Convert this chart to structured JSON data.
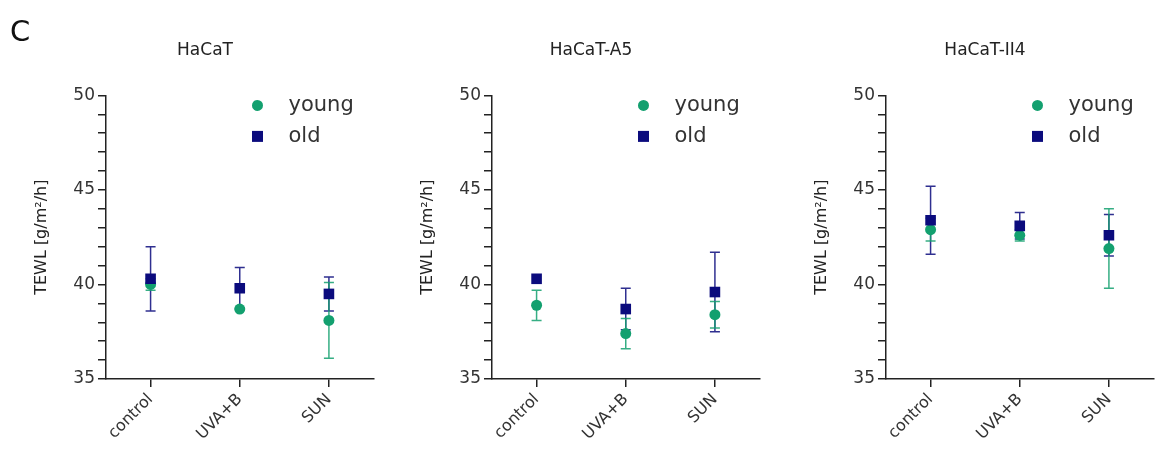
{
  "chart_data": [
    {
      "type": "scatter",
      "title": "HaCaT",
      "annotations": [
        "C"
      ],
      "categories": [
        "control",
        "UVA+B",
        "SUN"
      ],
      "ylabel": "TEWL [g/m²/h]",
      "ylim": [
        35,
        50
      ],
      "yticks": [
        35,
        {
          "value": 36,
          "label": null
        },
        {
          "value": 37,
          "label": null
        },
        {
          "value": 38,
          "label": null
        },
        {
          "value": 39,
          "label": null
        },
        40,
        {
          "value": 41,
          "label": null
        },
        {
          "value": 42,
          "label": null
        },
        {
          "value": 43,
          "label": null
        },
        {
          "value": 44,
          "label": null
        },
        45,
        {
          "value": 46,
          "label": null
        },
        {
          "value": 47,
          "label": null
        },
        {
          "value": 48,
          "label": null
        },
        {
          "value": 49,
          "label": null
        },
        50
      ],
      "legend": "top right",
      "grid": false,
      "series": [
        {
          "name": "young",
          "color": "#13a06f",
          "marker": "circle",
          "values": [
            40.0,
            38.7,
            38.1
          ],
          "errors": [
            0.3,
            null,
            2.0
          ]
        },
        {
          "name": "old",
          "color": "#0b0b7d",
          "marker": "square",
          "values": [
            40.3,
            39.8,
            39.5
          ],
          "errors": [
            1.7,
            1.1,
            0.9
          ]
        }
      ]
    },
    {
      "type": "scatter",
      "title": "HaCaT-A5",
      "categories": [
        "control",
        "UVA+B",
        "SUN"
      ],
      "ylabel": "TEWL [g/m²/h]",
      "ylim": [
        35,
        50
      ],
      "yticks": [
        35,
        {
          "value": 36,
          "label": null
        },
        {
          "value": 37,
          "label": null
        },
        {
          "value": 38,
          "label": null
        },
        {
          "value": 39,
          "label": null
        },
        40,
        {
          "value": 41,
          "label": null
        },
        {
          "value": 42,
          "label": null
        },
        {
          "value": 43,
          "label": null
        },
        {
          "value": 44,
          "label": null
        },
        45,
        {
          "value": 46,
          "label": null
        },
        {
          "value": 47,
          "label": null
        },
        {
          "value": 48,
          "label": null
        },
        {
          "value": 49,
          "label": null
        },
        50
      ],
      "legend": "top right",
      "grid": false,
      "series": [
        {
          "name": "young",
          "color": "#13a06f",
          "marker": "circle",
          "values": [
            38.9,
            37.4,
            38.4
          ],
          "errors": [
            0.8,
            0.8,
            0.7
          ]
        },
        {
          "name": "old",
          "color": "#0b0b7d",
          "marker": "square",
          "values": [
            40.3,
            38.7,
            39.6
          ],
          "errors": [
            null,
            1.1,
            2.1
          ]
        }
      ]
    },
    {
      "type": "scatter",
      "title": "HaCaT-II4",
      "categories": [
        "control",
        "UVA+B",
        "SUN"
      ],
      "ylabel": "TEWL [g/m²/h]",
      "ylim": [
        35,
        50
      ],
      "yticks": [
        35,
        {
          "value": 36,
          "label": null
        },
        {
          "value": 37,
          "label": null
        },
        {
          "value": 38,
          "label": null
        },
        {
          "value": 39,
          "label": null
        },
        40,
        {
          "value": 41,
          "label": null
        },
        {
          "value": 42,
          "label": null
        },
        {
          "value": 43,
          "label": null
        },
        {
          "value": 44,
          "label": null
        },
        45,
        {
          "value": 46,
          "label": null
        },
        {
          "value": 47,
          "label": null
        },
        {
          "value": 48,
          "label": null
        },
        {
          "value": 49,
          "label": null
        },
        50
      ],
      "legend": "top right",
      "grid": false,
      "series": [
        {
          "name": "young",
          "color": "#13a06f",
          "marker": "circle",
          "values": [
            42.9,
            42.6,
            41.9
          ],
          "errors": [
            0.6,
            0.3,
            2.1
          ]
        },
        {
          "name": "old",
          "color": "#0b0b7d",
          "marker": "square",
          "values": [
            43.4,
            43.1,
            42.6
          ],
          "errors": [
            1.8,
            0.7,
            1.1
          ]
        }
      ]
    }
  ]
}
